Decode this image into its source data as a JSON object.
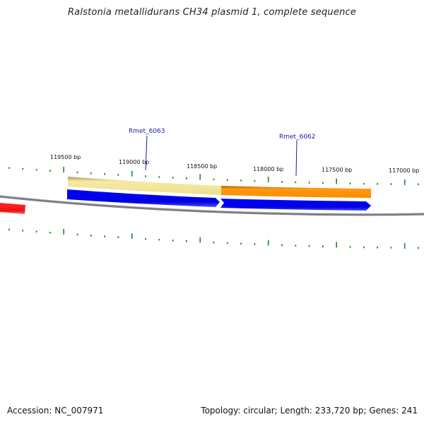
{
  "title": "Ralstonia metallidurans CH34 plasmid 1, complete sequence",
  "footer": {
    "accession": "Accession: NC_007971",
    "summary": "Topology: circular; Length: 233,720 bp; Genes: 241"
  },
  "ticks": {
    "labels": [
      "119500 bp",
      "119000 bp",
      "118500 bp",
      "118000 bp",
      "117500 bp",
      "117000 bp"
    ]
  },
  "genes": [
    {
      "label": "Rmet_6063"
    },
    {
      "label": "Rmet_6062"
    }
  ],
  "colors": {
    "backbone": "#808080",
    "tick": "#1a8a1a",
    "cds_forward": "#0000dd",
    "gene_a_feature": "#f2e59a",
    "gene_b_feature": "#ff8c00",
    "partial_feature": "#ee1111",
    "label_text": "#1a1aa8"
  }
}
